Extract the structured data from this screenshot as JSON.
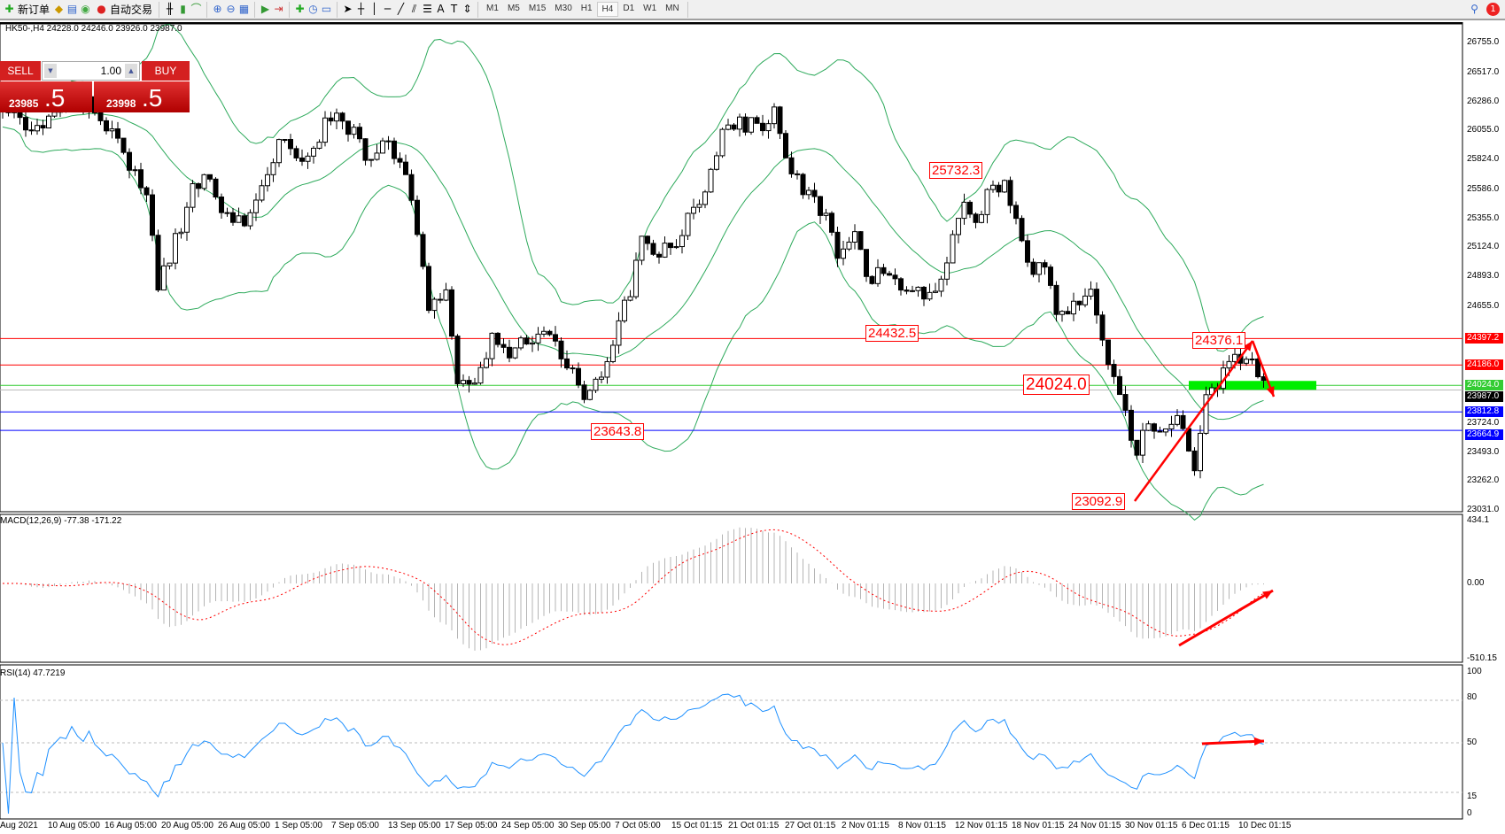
{
  "toolbar": {
    "new_order": "新订单",
    "auto_trading": "自动交易",
    "timeframes": [
      "M1",
      "M5",
      "M15",
      "M30",
      "H1",
      "H4",
      "D1",
      "W1",
      "MN"
    ],
    "selected_timeframe": "H4",
    "notification_count": "1",
    "icons": [
      "new-order-icon",
      "gold-icon",
      "history-icon",
      "signal-icon",
      "auto-trading-icon",
      "bar-chart-icon",
      "candlestick-icon",
      "line-chart-icon",
      "zoom-in-icon",
      "zoom-out-icon",
      "tile-windows-icon",
      "autoscroll-icon",
      "chart-shift-icon",
      "indicators-icon",
      "periods-icon",
      "templates-icon",
      "cursor-icon",
      "crosshair-icon",
      "vertical-line-icon",
      "horizontal-line-icon",
      "trendline-icon",
      "equidistant-channel-icon",
      "fibonacci-icon",
      "text-icon",
      "text-label-icon",
      "arrows-icon",
      "search-icon"
    ]
  },
  "chart_header": "HK50-,H4  24228.0 24246.0 23926.0 23987.0",
  "trade_panel": {
    "sell": "SELL",
    "buy": "BUY",
    "volume": "1.00",
    "sell_price_main": "23985",
    "sell_price_big": ".5",
    "buy_price_main": "23998",
    "buy_price_big": ".5"
  },
  "price_axis": [
    "26755.0",
    "26517.0",
    "26286.0",
    "26055.0",
    "25824.0",
    "25586.0",
    "25355.0",
    "25124.0",
    "24893.0",
    "24655.0",
    "23724.0",
    "23493.0",
    "23262.0",
    "23031.0"
  ],
  "levels": [
    {
      "price": 24397.2,
      "label": "24397.2",
      "color": "#ff0000"
    },
    {
      "price": 24186.0,
      "label": "24186.0",
      "color": "#ff0000"
    },
    {
      "price": 24024.0,
      "label": "24024.0",
      "color": "#33cc33"
    },
    {
      "price": 23987.0,
      "label": "23987.0",
      "color": "#000000"
    },
    {
      "price": 23812.8,
      "label": "23812.8",
      "color": "#0000ff"
    },
    {
      "price": 23664.9,
      "label": "23664.9",
      "color": "#0000ff"
    }
  ],
  "annotations": [
    "25732.3",
    "24432.5",
    "24024.0",
    "23643.8",
    "23092.9",
    "24376.1"
  ],
  "macd": {
    "label": "MACD(12,26,9) -77.38 -171.22",
    "axis": [
      "434.1",
      "0.00",
      "-510.15"
    ]
  },
  "rsi": {
    "label": "RSI(14) 47.7219",
    "axis": [
      "100",
      "80",
      "50",
      "15",
      "0"
    ]
  },
  "dates": [
    "Aug 2021",
    "10 Aug 05:00",
    "16 Aug 05:00",
    "20 Aug 05:00",
    "26 Aug 05:00",
    "1 Sep 05:00",
    "7 Sep 05:00",
    "13 Sep 05:00",
    "17 Sep 05:00",
    "24 Sep 05:00",
    "30 Sep 05:00",
    "7 Oct 05:00",
    "15 Oct 01:15",
    "21 Oct 01:15",
    "27 Oct 01:15",
    "2 Nov 01:15",
    "8 Nov 01:15",
    "12 Nov 01:15",
    "18 Nov 01:15",
    "24 Nov 01:15",
    "30 Nov 01:15",
    "6 Dec 01:15",
    "10 Dec 01:15"
  ],
  "chart_data": {
    "type": "candlestick",
    "symbol": "HK50-",
    "timeframe": "H4",
    "ylim": [
      23031,
      26755
    ],
    "price_path": [
      [
        0,
        26250
      ],
      [
        5,
        26021
      ],
      [
        10,
        26250
      ],
      [
        15,
        26289
      ],
      [
        18,
        26097
      ],
      [
        22,
        25753
      ],
      [
        25,
        25562
      ],
      [
        27,
        24798
      ],
      [
        30,
        25180
      ],
      [
        33,
        25562
      ],
      [
        36,
        25677
      ],
      [
        38,
        25409
      ],
      [
        43,
        25333
      ],
      [
        46,
        25715
      ],
      [
        48,
        25945
      ],
      [
        52,
        25868
      ],
      [
        55,
        26021
      ],
      [
        58,
        26212
      ],
      [
        62,
        25945
      ],
      [
        63,
        25792
      ],
      [
        67,
        25945
      ],
      [
        70,
        25639
      ],
      [
        72,
        25256
      ],
      [
        74,
        24568
      ],
      [
        77,
        24798
      ],
      [
        79,
        24033
      ],
      [
        82,
        24033
      ],
      [
        85,
        24415
      ],
      [
        88,
        24186
      ],
      [
        91,
        24415
      ],
      [
        95,
        24415
      ],
      [
        98,
        24186
      ],
      [
        101,
        23957
      ],
      [
        104,
        24033
      ],
      [
        107,
        24492
      ],
      [
        109,
        24798
      ],
      [
        111,
        25256
      ],
      [
        113,
        25027
      ],
      [
        117,
        25180
      ],
      [
        120,
        25409
      ],
      [
        123,
        25715
      ],
      [
        125,
        26097
      ],
      [
        128,
        26097
      ],
      [
        132,
        26097
      ],
      [
        134,
        26174
      ],
      [
        137,
        25715
      ],
      [
        140,
        25562
      ],
      [
        143,
        25333
      ],
      [
        145,
        25104
      ],
      [
        148,
        25256
      ],
      [
        150,
        24874
      ],
      [
        153,
        24950
      ],
      [
        156,
        24798
      ],
      [
        158,
        24721
      ],
      [
        161,
        24798
      ],
      [
        163,
        24874
      ],
      [
        165,
        25256
      ],
      [
        167,
        25448
      ],
      [
        169,
        25333
      ],
      [
        172,
        25639
      ],
      [
        174,
        25600
      ],
      [
        176,
        25295
      ],
      [
        178,
        24950
      ],
      [
        181,
        24950
      ],
      [
        183,
        24645
      ],
      [
        187,
        24645
      ],
      [
        189,
        24721
      ],
      [
        191,
        24415
      ],
      [
        193,
        24033
      ],
      [
        195,
        23804
      ],
      [
        197,
        23498
      ],
      [
        199,
        23727
      ],
      [
        202,
        23651
      ],
      [
        204,
        23727
      ],
      [
        207,
        23383
      ],
      [
        209,
        23880
      ],
      [
        211,
        24033
      ],
      [
        213,
        24186
      ],
      [
        216,
        24262
      ],
      [
        218,
        24148
      ],
      [
        219,
        24033
      ]
    ]
  }
}
